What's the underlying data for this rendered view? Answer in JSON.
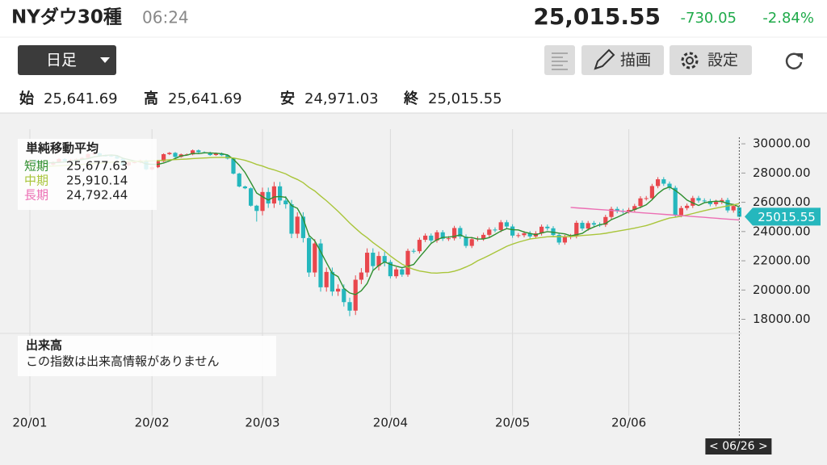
{
  "header": {
    "title": "NYダウ30種",
    "time": "06:24",
    "price": "25,015.55",
    "change": "-730.05",
    "change_pct": "-2.84%"
  },
  "toolbar": {
    "period": "日足",
    "draw": "描画",
    "settings": "設定"
  },
  "ohlc": [
    {
      "label": "始",
      "value": "25,641.69"
    },
    {
      "label": "高",
      "value": "25,641.69"
    },
    {
      "label": "安",
      "value": "24,971.03"
    },
    {
      "label": "終",
      "value": "25,015.55"
    }
  ],
  "chart_data": {
    "type": "candlestick",
    "title": "単純移動平均",
    "up_color": "#e8474d",
    "down_color": "#25b7bd",
    "ylim": [
      17200,
      31000
    ],
    "yticks": [
      {
        "value": 30000,
        "label": "30000.00"
      },
      {
        "value": 28000,
        "label": "28000.00"
      },
      {
        "value": 26000,
        "label": "26000.00"
      },
      {
        "value": 24000,
        "label": "24000.00"
      },
      {
        "value": 22000,
        "label": "22000.00"
      },
      {
        "value": 20000,
        "label": "20000.00"
      },
      {
        "value": 18000,
        "label": "18000.00"
      }
    ],
    "xticks": [
      {
        "value": 0,
        "label": "20/01"
      },
      {
        "value": 21,
        "label": "20/02"
      },
      {
        "value": 40,
        "label": "20/03"
      },
      {
        "value": 62,
        "label": "20/04"
      },
      {
        "value": 83,
        "label": "20/05"
      },
      {
        "value": 103,
        "label": "20/06"
      }
    ],
    "grid": true,
    "open": [
      28639,
      28868,
      28634,
      28703,
      28583,
      28745,
      28957,
      28824,
      28907,
      28940,
      29030,
      29297,
      29348,
      29196,
      29186,
      29160,
      28990,
      28535,
      28723,
      28734,
      28859,
      28256,
      28400,
      28808,
      29290,
      29380,
      29103,
      29276,
      29276,
      29551,
      29424,
      29398,
      29232,
      29348,
      29220,
      28992,
      27961,
      27081,
      26957,
      25767,
      25409,
      26703,
      25917,
      27091,
      26121,
      25865,
      23851,
      25018,
      23553,
      21200,
      23185,
      20189,
      21237,
      19899,
      20087,
      19174,
      18592,
      20705,
      21200,
      22552,
      21637,
      22327,
      21917,
      20944,
      21413,
      21053,
      22680,
      22654,
      23434,
      23719,
      23390,
      23950,
      23505,
      23538,
      24242,
      23650,
      23019,
      23475,
      23516,
      23775,
      24134,
      24102,
      24634,
      24346,
      23724,
      23750,
      23883,
      23664,
      23876,
      24331,
      24222,
      23765,
      23248,
      23625,
      23685,
      24597,
      24207,
      24576,
      24474,
      24465,
      24995,
      25548,
      25401,
      25383,
      25475,
      25743,
      26270,
      26282,
      27111,
      27572,
      27272,
      26990,
      25128,
      25606,
      25763,
      26290,
      26120,
      26080,
      25871,
      26025,
      26156,
      25446,
      25641.69
    ],
    "high": [
      28928,
      28928,
      28763,
      28763,
      28805,
      29017,
      29017,
      28967,
      29000,
      29090,
      29357,
      29408,
      29408,
      29256,
      29246,
      29220,
      29050,
      28783,
      28794,
      28919,
      28919,
      28460,
      28868,
      29350,
      29440,
      29440,
      29336,
      29336,
      29611,
      29611,
      29484,
      29458,
      29408,
      29408,
      29280,
      29052,
      28021,
      27141,
      27017,
      25827,
      27003,
      27003,
      27391,
      27391,
      26421,
      26165,
      25318,
      25318,
      23853,
      23485,
      23485,
      21537,
      21537,
      20387,
      20387,
      19474,
      21005,
      21500,
      22852,
      22852,
      22627,
      22627,
      22067,
      21563,
      21563,
      22830,
      22830,
      23584,
      23869,
      23869,
      24100,
      24100,
      23688,
      24392,
      24392,
      23800,
      23625,
      23666,
      23925,
      24284,
      24284,
      24784,
      24784,
      24496,
      23900,
      24033,
      24033,
      24026,
      24481,
      24481,
      24372,
      23915,
      23775,
      23835,
      24747,
      24747,
      24726,
      24726,
      24624,
      25145,
      25698,
      25698,
      25551,
      25625,
      25893,
      26420,
      26432,
      27261,
      27722,
      27722,
      27422,
      27140,
      25756,
      25913,
      26440,
      26440,
      26270,
      26230,
      26175,
      26306,
      26306,
      25895,
      25641.69
    ],
    "low": [
      28579,
      28574,
      28574,
      28523,
      28523,
      28685,
      28764,
      28764,
      28847,
      28880,
      28970,
      29237,
      29136,
      29126,
      29100,
      28930,
      28475,
      28475,
      28663,
      28674,
      28196,
      28196,
      28340,
      28748,
      29230,
      29043,
      29043,
      29216,
      29216,
      29364,
      29338,
      29172,
      29172,
      29160,
      28932,
      27901,
      27021,
      26897,
      25707,
      24681,
      25109,
      25617,
      25617,
      25821,
      25565,
      23551,
      23551,
      23253,
      20900,
      20900,
      19889,
      19889,
      19599,
      19599,
      18874,
      18213,
      18292,
      20405,
      20900,
      21337,
      21337,
      21617,
      20794,
      20794,
      20903,
      20903,
      22504,
      22504,
      23284,
      23240,
      23240,
      23355,
      23355,
      23388,
      23500,
      22869,
      22869,
      23325,
      23366,
      23625,
      23952,
      23952,
      24196,
      23574,
      23574,
      23600,
      23514,
      23514,
      23726,
      24072,
      23615,
      23098,
      23098,
      23475,
      23535,
      24057,
      24057,
      24324,
      24315,
      24315,
      24845,
      25251,
      25233,
      25233,
      25325,
      25593,
      26120,
      26132,
      26961,
      27122,
      26840,
      24978,
      24978,
      25456,
      25613,
      25970,
      25930,
      25721,
      25721,
      25875,
      25296,
      25296,
      24971.03
    ],
    "close": [
      28868,
      28634,
      28703,
      28583,
      28745,
      28957,
      28824,
      28907,
      28940,
      29030,
      29297,
      29348,
      29196,
      29186,
      29160,
      28990,
      28535,
      28723,
      28734,
      28859,
      28256,
      28400,
      28808,
      29290,
      29380,
      29103,
      29276,
      29276,
      29551,
      29424,
      29398,
      29232,
      29348,
      29220,
      28992,
      27961,
      27081,
      26957,
      25767,
      25409,
      26703,
      25917,
      27091,
      26121,
      25865,
      23851,
      25018,
      23553,
      21200,
      23185,
      20189,
      21237,
      19899,
      20087,
      19174,
      18592,
      20705,
      21200,
      22552,
      21637,
      22327,
      21917,
      20944,
      21413,
      21053,
      22680,
      22654,
      23434,
      23719,
      23390,
      23950,
      23505,
      23538,
      24242,
      23650,
      23019,
      23475,
      23516,
      23775,
      24134,
      24102,
      24634,
      24346,
      23724,
      23750,
      23883,
      23664,
      23876,
      24331,
      24222,
      23765,
      23248,
      23625,
      23685,
      24597,
      24207,
      24576,
      24474,
      24465,
      24995,
      25548,
      25401,
      25383,
      25475,
      25743,
      26270,
      26282,
      27111,
      27572,
      27272,
      26990,
      25128,
      25606,
      25763,
      26290,
      26120,
      26080,
      25871,
      26025,
      26156,
      25446,
      25745,
      25015.55
    ],
    "last_price_label": "25015.55",
    "cursor_label": "< 06/26 >",
    "series": [
      {
        "name": "短期",
        "color": "#2f8f2f",
        "last_value_label": "25,677.63",
        "values": [
          28700,
          28700,
          28700,
          28690,
          28707,
          28724,
          28762,
          28803,
          28875,
          28932,
          28990,
          29104,
          29164,
          29211,
          29237,
          29196,
          29013,
          28919,
          28826,
          28768,
          28621,
          28596,
          28596,
          28689,
          28827,
          28998,
          29171,
          29225,
          29336,
          29326,
          29385,
          29376,
          29357,
          29324,
          29238,
          28951,
          28540,
          28042,
          27353,
          26635,
          26383,
          26151,
          26369,
          26397,
          26339,
          25773,
          25593,
          24882,
          23737,
          23361,
          22629,
          21873,
          21142,
          20919,
          20117,
          19798,
          19691,
          19952,
          20445,
          21337,
          21684,
          21927,
          21754,
          21630,
          21531,
          21627,
          21749,
          22247,
          22708,
          23187,
          23436,
          23600,
          23620,
          23669,
          23777,
          23591,
          23585,
          23488,
          23487,
          23584,
          23804,
          24032,
          24198,
          24128,
          24109,
          23966,
          23873,
          23779,
          23901,
          23995,
          23952,
          23889,
          23838,
          23709,
          23784,
          23872,
          24138,
          24310,
          24464,
          24544,
          24812,
          24977,
          25158,
          25360,
          25510,
          25654,
          25830,
          26176,
          26596,
          26901,
          27045,
          26815,
          26514,
          26152,
          25955,
          25781,
          25973,
          26025,
          26077,
          26050,
          25916,
          25849,
          25677.63
        ]
      },
      {
        "name": "中期",
        "color": "#a9c53a",
        "last_value_label": "25,910.14",
        "values": [
          28400,
          28420,
          28440,
          28460,
          28480,
          28500,
          28520,
          28545,
          28570,
          28595,
          28620,
          28650,
          28680,
          28710,
          28740,
          28760,
          28770,
          28780,
          28790,
          28810,
          28815,
          28830,
          28850,
          28870,
          28900,
          28920,
          28940,
          28960,
          28990,
          29010,
          29030,
          29050,
          29060,
          29070,
          29060,
          29030,
          28960,
          28870,
          28740,
          28590,
          28480,
          28330,
          28220,
          28080,
          27940,
          27730,
          27560,
          27340,
          27020,
          26770,
          26430,
          26110,
          25750,
          25380,
          24990,
          24580,
          24220,
          23870,
          23580,
          23250,
          22960,
          22670,
          22330,
          22040,
          21770,
          21570,
          21420,
          21300,
          21240,
          21170,
          21160,
          21190,
          21210,
          21290,
          21410,
          21580,
          21760,
          22000,
          22180,
          22380,
          22580,
          22780,
          22990,
          23140,
          23270,
          23380,
          23490,
          23540,
          23590,
          23640,
          23660,
          23650,
          23650,
          23660,
          23690,
          23730,
          23760,
          23790,
          23830,
          23880,
          23950,
          24020,
          24090,
          24160,
          24230,
          24320,
          24410,
          24530,
          24670,
          24800,
          24920,
          24980,
          25050,
          25130,
          25230,
          25330,
          25430,
          25520,
          25600,
          25680,
          25750,
          25820,
          25910.14
        ]
      },
      {
        "name": "長期",
        "color": "#ec6fb4",
        "last_value_label": "24,792.44",
        "values": [
          null,
          null,
          null,
          null,
          null,
          null,
          null,
          null,
          null,
          null,
          null,
          null,
          null,
          null,
          null,
          null,
          null,
          null,
          null,
          null,
          null,
          null,
          null,
          null,
          null,
          null,
          null,
          null,
          null,
          null,
          null,
          null,
          null,
          null,
          null,
          null,
          null,
          null,
          null,
          null,
          null,
          null,
          null,
          null,
          null,
          null,
          null,
          null,
          null,
          null,
          null,
          null,
          null,
          null,
          null,
          null,
          null,
          null,
          null,
          null,
          null,
          null,
          null,
          null,
          null,
          null,
          null,
          null,
          null,
          null,
          null,
          null,
          null,
          null,
          null,
          null,
          null,
          null,
          null,
          null,
          null,
          null,
          null,
          null,
          null,
          null,
          null,
          null,
          null,
          null,
          null,
          null,
          null,
          25650,
          25620,
          25591,
          25561,
          25532,
          25502,
          25473,
          25443,
          25414,
          25384,
          25354,
          25325,
          25295,
          25266,
          25236,
          25207,
          25177,
          25148,
          25118,
          25088,
          25059,
          25029,
          25000,
          24970,
          24941,
          24911,
          24881,
          24852,
          24822,
          24792.44
        ]
      }
    ]
  },
  "volume_panel": {
    "title": "出来高",
    "message": "この指数は出来高情報がありません"
  }
}
